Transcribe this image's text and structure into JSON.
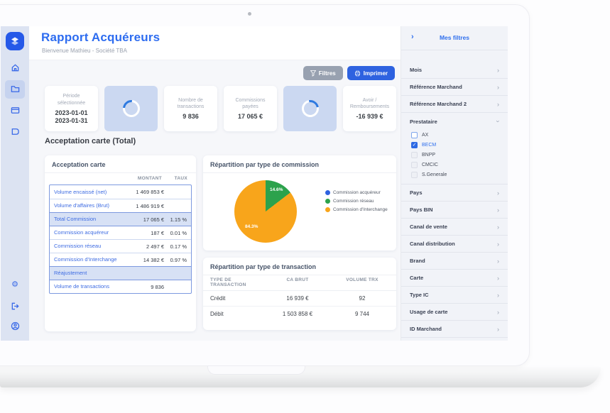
{
  "app": {
    "header": {
      "title": "Rapport Acquéreurs",
      "subtitle": "Bienvenue Mathieu - Société TBA"
    },
    "toolbar": {
      "filters": "Filtres",
      "print": "Imprimer"
    },
    "stats": [
      {
        "label": "Période sélectionnée",
        "line1": "2023-01-01",
        "line2": "2023-01-31"
      },
      {
        "type": "loading"
      },
      {
        "label": "Nombre de transactions",
        "value": "9 836"
      },
      {
        "label": "Commissions payées",
        "value": "17 065 €"
      },
      {
        "type": "loading"
      },
      {
        "label": "Avoir / Remboursements",
        "value": "-16 939 €"
      }
    ],
    "section_title": "Acceptation carte (Total)",
    "acceptation": {
      "title": "Acceptation carte",
      "columns": [
        "MONTANT",
        "TAUX"
      ],
      "rows": [
        {
          "label": "Volume encaissé (net)",
          "montant": "1 469 853 €",
          "taux": "",
          "highlight": false
        },
        {
          "label": "Volume d'affaires (Brut)",
          "montant": "1 486 919 €",
          "taux": "",
          "highlight": false
        },
        {
          "label": "Total Commission",
          "montant": "17 065 €",
          "taux": "1.15 %",
          "highlight": true
        },
        {
          "label": "Commission acquéreur",
          "montant": "187 €",
          "taux": "0.01 %",
          "highlight": false
        },
        {
          "label": "Commission réseau",
          "montant": "2 497 €",
          "taux": "0.17 %",
          "highlight": false
        },
        {
          "label": "Commission d'Interchange",
          "montant": "14 382 €",
          "taux": "0.97 %",
          "highlight": false
        },
        {
          "label": "Réajustement",
          "montant": "",
          "taux": "",
          "highlight": true
        },
        {
          "label": "Volume de transactions",
          "montant": "9 836",
          "taux": "",
          "highlight": false
        }
      ]
    },
    "transactions": {
      "title": "Répartition par type de transaction",
      "columns": [
        "TYPE DE TRANSACTION",
        "CA BRUT",
        "VOLUME TRX"
      ],
      "rows": [
        {
          "type": "Crédit",
          "ca_brut": "16 939 €",
          "volume_trx": "92"
        },
        {
          "type": "Débit",
          "ca_brut": "1 503 858 €",
          "volume_trx": "9 744"
        }
      ]
    },
    "filters_panel": {
      "title": "Mes filtres",
      "items_top": [
        "Mois",
        "Référence Marchand",
        "Référence Marchand 2"
      ],
      "prestataire": {
        "label": "Prestataire",
        "options": [
          {
            "label": "AX",
            "checked": false
          },
          {
            "label": "BECM",
            "checked": true
          },
          {
            "label": "BNPP",
            "checked": false
          },
          {
            "label": "CMCIC",
            "checked": false
          },
          {
            "label": "S.Generale",
            "checked": false
          }
        ]
      },
      "items_bottom": [
        "Pays",
        "Pays BIN",
        "Canal de vente",
        "Canal distribution",
        "Brand",
        "Carte",
        "Type IC",
        "Usage de carte",
        "ID Marchand"
      ]
    },
    "colors": {
      "accent": "#2d6cf0",
      "button_gray": "#98a1b0",
      "button_blue": "#2e62e0",
      "sidebar_bg": "#dce3f2",
      "highlight_row": "#d7e1f5"
    }
  },
  "chart_data": {
    "type": "pie",
    "title": "Répartition par type de commission",
    "labels": [
      "Commission acquéreur",
      "Commission réseau",
      "Commission d'Interchange"
    ],
    "values": [
      1.1,
      14.6,
      84.3
    ],
    "colors": [
      "#2e62e0",
      "#2ca24c",
      "#f8a51b"
    ],
    "slice_labels": [
      "14.6%",
      "84.3%"
    ],
    "legend_position": "right"
  }
}
